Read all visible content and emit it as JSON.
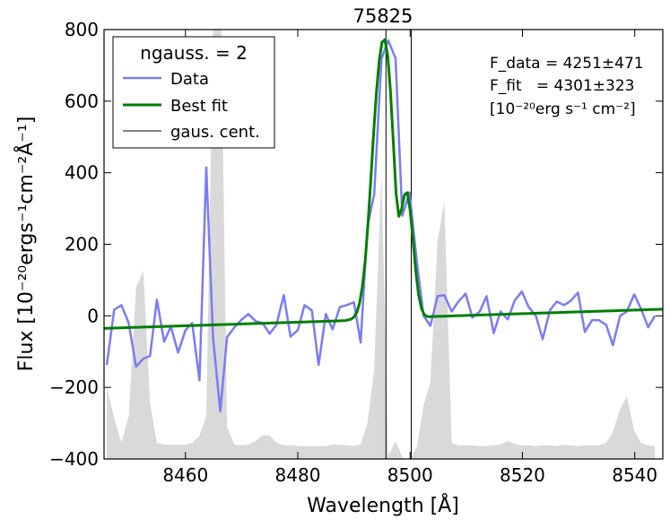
{
  "chart_data": {
    "type": "line",
    "title": "75825",
    "xlabel": "Wavelength [Å]",
    "ylabel": "Flux [10⁻²⁰ergs⁻¹cm⁻²Å⁻¹]",
    "xlim": [
      8445.5,
      8545
    ],
    "ylim": [
      -400,
      800
    ],
    "xticks": [
      8460,
      8480,
      8500,
      8520,
      8540
    ],
    "yticks": [
      -400,
      -200,
      0,
      200,
      400,
      600,
      800
    ],
    "xtick_labels": [
      "8460",
      "8480",
      "8500",
      "8520",
      "8540"
    ],
    "ytick_labels": [
      "−400",
      "−200",
      "0",
      "200",
      "400",
      "600",
      "800"
    ],
    "grid": false,
    "legend": {
      "title": "ngauss. = 2",
      "placement": "top-left",
      "entries": [
        "Data",
        "Best fit",
        "gaus. cent."
      ]
    },
    "annotations": [
      "F_data = 4251±471",
      "F_fit   = 4301±323",
      "[10⁻²⁰erg s⁻¹ cm⁻²]"
    ],
    "colors": {
      "data": "#7b7bf7",
      "fit": "#007f00",
      "centers": "#000000",
      "noise": "#d9d9d9"
    },
    "centers": [
      8495.7,
      8500.2
    ],
    "series": [
      {
        "name": "Data",
        "x": [
          8446.0,
          8447.3,
          8448.6,
          8449.9,
          8451.2,
          8452.5,
          8453.7,
          8454.9,
          8456.2,
          8457.4,
          8458.7,
          8460.0,
          8461.2,
          8462.5,
          8463.7,
          8464.9,
          8466.2,
          8467.4,
          8468.7,
          8469.9,
          8471.2,
          8472.5,
          8473.7,
          8475.0,
          8476.2,
          8477.5,
          8478.7,
          8480.0,
          8481.2,
          8482.5,
          8483.7,
          8485.0,
          8486.2,
          8487.5,
          8488.7,
          8490.0,
          8491.2,
          8492.4,
          8493.6,
          8494.9,
          8496.1,
          8497.4,
          8498.6,
          8499.9,
          8501.2,
          8502.4,
          8503.6,
          8504.9,
          8506.1,
          8507.4,
          8508.6,
          8509.9,
          8511.1,
          8512.4,
          8513.6,
          8514.9,
          8516.1,
          8517.4,
          8518.6,
          8519.9,
          8521.1,
          8522.4,
          8523.6,
          8524.9,
          8526.1,
          8527.4,
          8528.6,
          8529.9,
          8531.1,
          8532.4,
          8533.6,
          8534.9,
          8536.1,
          8537.4,
          8538.6,
          8539.9,
          8541.1,
          8542.4,
          8543.6
        ],
        "y": [
          -137,
          17,
          30,
          -20,
          -142,
          -120,
          -112,
          45,
          -72,
          -30,
          -103,
          -40,
          -20,
          -180,
          415,
          -60,
          -267,
          -60,
          -32,
          -12,
          5,
          -15,
          -20,
          -50,
          -25,
          58,
          -58,
          -40,
          30,
          15,
          -137,
          5,
          -38,
          25,
          30,
          38,
          -75,
          250,
          340,
          718,
          770,
          720,
          280,
          345,
          150,
          0,
          -28,
          55,
          58,
          12,
          40,
          62,
          -5,
          12,
          55,
          -48,
          12,
          -10,
          42,
          68,
          25,
          0,
          -65,
          15,
          40,
          30,
          42,
          65,
          -45,
          -12,
          -12,
          -25,
          -82,
          0,
          12,
          60,
          20,
          -32,
          0
        ]
      },
      {
        "name": "Best fit",
        "x": [
          8445.5,
          8446.5,
          8447.5,
          8448.5,
          8449.5,
          8450.5,
          8451.5,
          8452.5,
          8453.5,
          8454.5,
          8455.5,
          8456.5,
          8457.5,
          8458.5,
          8459.5,
          8460.5,
          8461.5,
          8462.5,
          8463.5,
          8464.5,
          8465.5,
          8466.5,
          8467.5,
          8468.5,
          8469.5,
          8470.5,
          8471.5,
          8472.5,
          8473.5,
          8474.5,
          8475.5,
          8476.5,
          8477.5,
          8478.5,
          8479.5,
          8480.5,
          8481.5,
          8482.5,
          8483.5,
          8484.5,
          8485.5,
          8486.5,
          8487.5,
          8488.5,
          8489.5,
          8490.0,
          8490.5,
          8491.0,
          8491.5,
          8492.0,
          8492.5,
          8493.0,
          8493.5,
          8494.0,
          8494.5,
          8495.0,
          8495.5,
          8496.0,
          8496.5,
          8497.0,
          8497.5,
          8498.0,
          8498.5,
          8499.0,
          8499.5,
          8500.0,
          8500.5,
          8501.0,
          8501.5,
          8502.0,
          8502.5,
          8503.0,
          8503.5,
          8504.0,
          8505.0,
          8506.0,
          8507.0,
          8508.0,
          8509.0,
          8510.0,
          8511.0,
          8512.0,
          8513.0,
          8514.0,
          8515.0,
          8516.0,
          8517.0,
          8518.0,
          8519.0,
          8520.0,
          8521.0,
          8522.0,
          8523.0,
          8524.0,
          8525.0,
          8526.0,
          8527.0,
          8528.0,
          8529.0,
          8530.0,
          8531.0,
          8532.0,
          8533.0,
          8534.0,
          8535.0,
          8536.0,
          8537.0,
          8538.0,
          8539.0,
          8540.0,
          8541.0,
          8542.0,
          8543.0,
          8544.0,
          8545.0
        ],
        "y": [
          -35.0,
          -34.5,
          -34.0,
          -33.5,
          -33.0,
          -32.5,
          -32.0,
          -31.5,
          -31.0,
          -30.5,
          -30.0,
          -29.5,
          -29.0,
          -28.5,
          -28.0,
          -27.5,
          -27.0,
          -26.5,
          -26.0,
          -25.5,
          -25.0,
          -24.5,
          -24.0,
          -23.5,
          -23.0,
          -22.5,
          -22.0,
          -21.5,
          -21.0,
          -20.5,
          -20.0,
          -19.5,
          -19.0,
          -18.5,
          -18.0,
          -17.5,
          -17.0,
          -16.5,
          -16.0,
          -15.5,
          -15.0,
          -14.5,
          -14.0,
          -13.2,
          -9.4,
          -3.5,
          9.7,
          35.9,
          82.0,
          155.0,
          257.0,
          379.7,
          508.5,
          625.2,
          713.9,
          764.6,
          772.0,
          728.6,
          629.7,
          486.4,
          341.5,
          278.2,
          298.8,
          338.7,
          344.2,
          296.1,
          213.4,
          127.0,
          60.2,
          21.5,
          3.7,
          -1.6,
          -2.4,
          -2.0,
          -1.5,
          -1.0,
          -0.5,
          0.0,
          0.5,
          1.0,
          1.5,
          2.0,
          2.5,
          3.0,
          3.5,
          4.0,
          4.5,
          5.0,
          5.5,
          6.0,
          6.5,
          7.0,
          7.5,
          8.0,
          8.5,
          9.0,
          9.5,
          10.0,
          10.5,
          11.0,
          11.5,
          12.0,
          12.5,
          13.0,
          13.5,
          14.0,
          14.5,
          15.0,
          15.5,
          16.0,
          16.5,
          17.0,
          17.5,
          18.0,
          18.5
        ]
      },
      {
        "name": "noise",
        "x": [
          8446.0,
          8447.3,
          8448.6,
          8449.9,
          8451.2,
          8452.5,
          8453.7,
          8454.9,
          8456.2,
          8457.4,
          8458.7,
          8460.0,
          8461.2,
          8462.5,
          8463.7,
          8464.9,
          8466.2,
          8467.4,
          8468.7,
          8469.9,
          8471.2,
          8472.5,
          8473.7,
          8475.0,
          8476.2,
          8477.5,
          8478.7,
          8480.0,
          8481.2,
          8482.5,
          8483.7,
          8485.0,
          8486.2,
          8487.5,
          8488.7,
          8490.0,
          8491.2,
          8492.4,
          8493.6,
          8494.9,
          8496.1,
          8497.4,
          8498.6,
          8499.9,
          8501.2,
          8502.4,
          8503.6,
          8504.9,
          8506.1,
          8507.4,
          8508.6,
          8509.9,
          8511.1,
          8512.4,
          8513.6,
          8514.9,
          8516.1,
          8517.4,
          8518.6,
          8519.9,
          8521.1,
          8522.4,
          8523.6,
          8524.9,
          8526.1,
          8527.4,
          8528.6,
          8529.9,
          8531.1,
          8532.4,
          8533.6,
          8534.9,
          8536.1,
          8537.4,
          8538.6,
          8539.9,
          8541.1,
          8542.4,
          8543.6
        ],
        "y": [
          -200,
          -285,
          -355,
          -280,
          80,
          125,
          -245,
          -355,
          -360,
          -360,
          -360,
          -360,
          -355,
          -335,
          -280,
          800,
          1000,
          -310,
          -360,
          -362,
          -360,
          -350,
          -333,
          -335,
          -355,
          -362,
          -362,
          -364,
          -364,
          -364,
          -364,
          -364,
          -360,
          -360,
          -362,
          -364,
          -360,
          -300,
          -150,
          400,
          -390,
          -350,
          -395,
          -405,
          -365,
          -250,
          -185,
          210,
          320,
          -355,
          -362,
          -362,
          -362,
          -364,
          -364,
          -362,
          -360,
          -350,
          -358,
          -362,
          -362,
          -364,
          -362,
          -362,
          -364,
          -360,
          -362,
          -364,
          -362,
          -362,
          -362,
          -355,
          -325,
          -260,
          -225,
          -320,
          -355,
          -362,
          -364
        ]
      }
    ]
  }
}
